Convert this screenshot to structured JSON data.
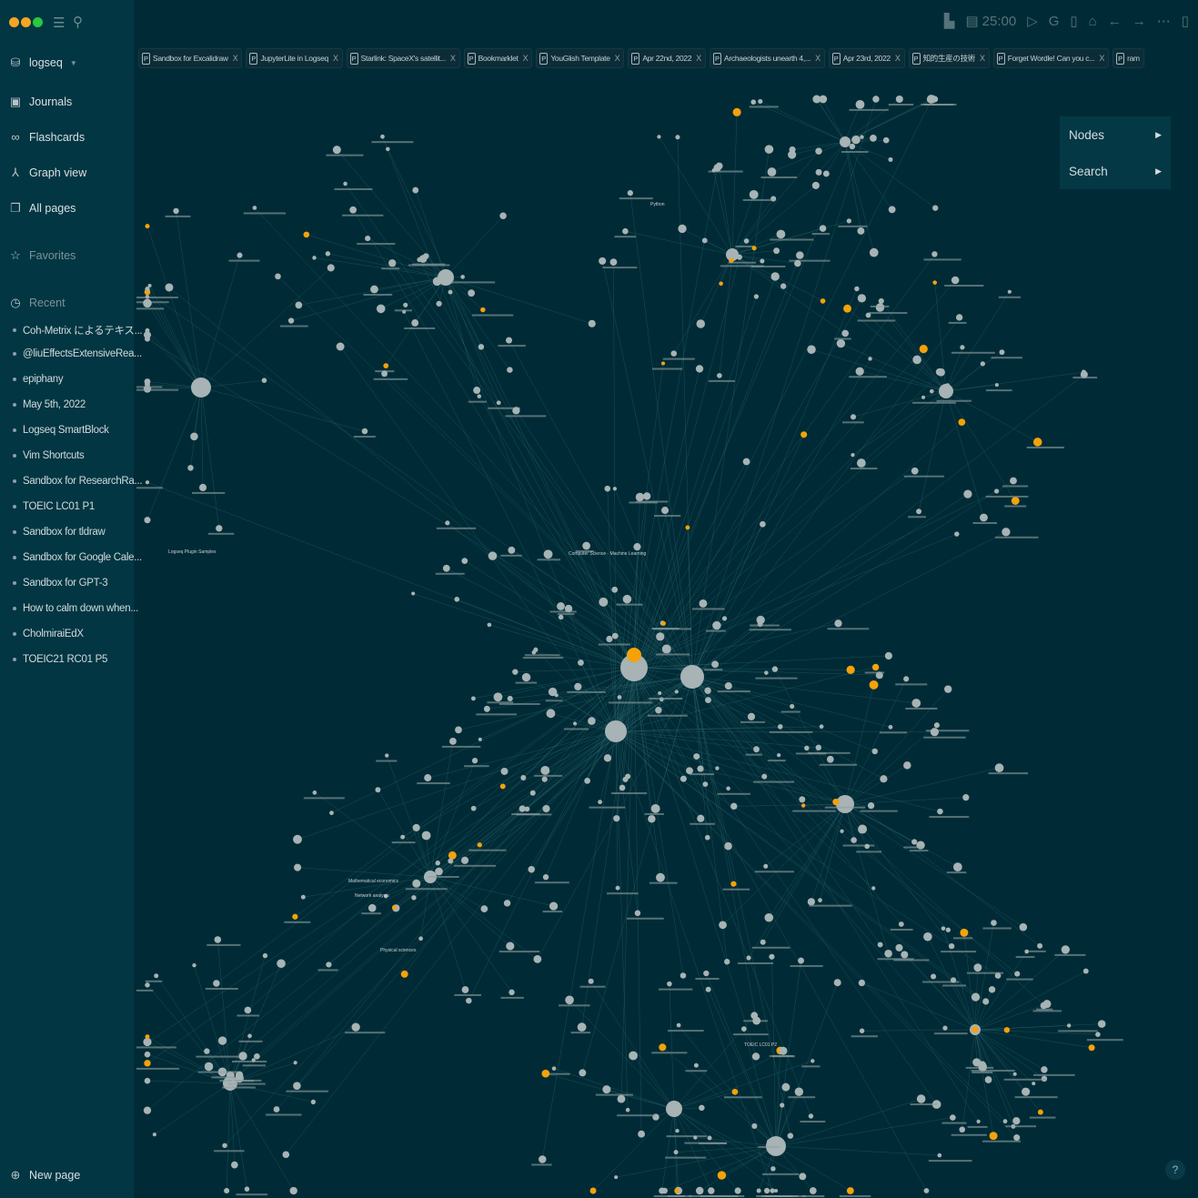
{
  "window": {
    "traffic_colors": [
      "#f5a524",
      "#f5a524",
      "#27c93f"
    ]
  },
  "sidebar": {
    "graph_name": "logseq",
    "nav": [
      {
        "label": "Journals",
        "icon": "calendar-icon"
      },
      {
        "label": "Flashcards",
        "icon": "infinity-icon"
      },
      {
        "label": "Graph view",
        "icon": "graph-icon"
      },
      {
        "label": "All pages",
        "icon": "pages-icon"
      }
    ],
    "favorites": "Favorites",
    "recent_label": "Recent",
    "recent": [
      "Coh-Metrix によるテキス...",
      "@liuEffectsExtensiveRea...",
      "epiphany",
      "May 5th, 2022",
      "Logseq SmartBlock",
      "Vim Shortcuts",
      "Sandbox for ResearchRa...",
      "TOEIC LC01 P1",
      "Sandbox for tldraw",
      "Sandbox for Google Cale...",
      "Sandbox for GPT-3",
      "How to calm down when...",
      "CholmiraiEdX",
      "TOEIC21 RC01 P5"
    ],
    "new_page": "New page"
  },
  "toolbar": {
    "timer": "25:00"
  },
  "tabs": [
    "Sandbox for Excalidraw",
    "JupyterLite in Logseq",
    "Starlink: SpaceX's satellit...",
    "Bookmarklet",
    "YouGlish Template",
    "Apr 22nd, 2022",
    "Archaeologists unearth 4,...",
    "Apr 23rd, 2022",
    "知的生産の技術",
    "Forget Wordle! Can you c...",
    "ram"
  ],
  "graph": {
    "node_color": "#a7b3b4",
    "highlight_color": "#f5a20a",
    "edge_color": "#2f6a70",
    "background": "#002b36",
    "labels": [
      "Python",
      "Logseq Plugin Samples",
      "Mathematical economics",
      "Network analysis",
      "Physical sciences",
      "Computer Science - Machine Learning",
      "TOEIC LC01 P2"
    ]
  },
  "panel": {
    "items": [
      "Nodes",
      "Search"
    ]
  },
  "help": "?"
}
